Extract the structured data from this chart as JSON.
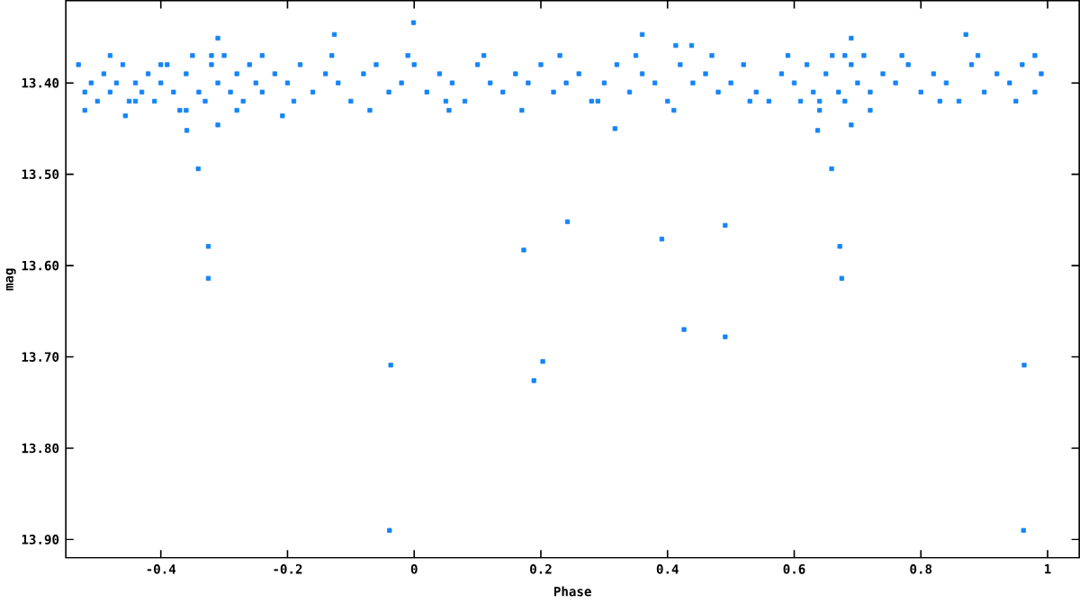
{
  "chart_data": {
    "type": "scatter",
    "xlabel": "Phase",
    "ylabel": "mag",
    "color": "#1484f8",
    "marker": "square",
    "grid": false,
    "xlim": [
      -0.55,
      1.05
    ],
    "xticks": [
      -0.4,
      -0.2,
      0,
      0.2,
      0.4,
      0.6,
      0.8,
      1
    ],
    "ylim": [
      13.92,
      13.31
    ],
    "yticks": [
      {
        "value": 13.4,
        "label": "13.40"
      },
      {
        "value": 13.5,
        "label": "13.50"
      },
      {
        "value": 13.6,
        "label": "13.60"
      },
      {
        "value": 13.7,
        "label": "13.70"
      },
      {
        "value": 13.8,
        "label": "13.80"
      },
      {
        "value": 13.9,
        "label": "13.90"
      }
    ],
    "x": [
      -0.53,
      -0.52,
      -0.51,
      -0.5,
      -0.49,
      -0.48,
      -0.47,
      -0.46,
      -0.45,
      -0.44,
      -0.43,
      -0.42,
      -0.41,
      -0.4,
      -0.39,
      -0.38,
      -0.37,
      -0.36,
      -0.35,
      -0.34,
      -0.33,
      -0.32,
      -0.31,
      -0.3,
      -0.29,
      -0.28,
      -0.27,
      -0.26,
      -0.25,
      -0.24,
      -0.22,
      -0.2,
      -0.18,
      -0.16,
      -0.14,
      -0.12,
      -0.1,
      -0.08,
      -0.06,
      -0.04,
      -0.02,
      0.0,
      0.02,
      0.04,
      0.06,
      0.08,
      0.1,
      0.12,
      0.14,
      0.16,
      0.18,
      0.2,
      0.22,
      0.24,
      0.26,
      0.28,
      0.3,
      0.32,
      0.34,
      0.36,
      0.38,
      0.4,
      0.42,
      0.44,
      0.46,
      0.48,
      0.5,
      0.52,
      0.54,
      0.56,
      0.58,
      0.6,
      0.61,
      0.62,
      0.63,
      0.64,
      0.65,
      0.66,
      0.67,
      0.68,
      0.69,
      0.7,
      0.71,
      0.72,
      0.74,
      0.76,
      0.78,
      0.8,
      0.82,
      0.84,
      0.86,
      0.88,
      0.9,
      0.92,
      0.94,
      0.96,
      0.98,
      0.99,
      -0.52,
      -0.48,
      -0.44,
      -0.4,
      -0.36,
      -0.32,
      -0.28,
      -0.24,
      -0.19,
      -0.13,
      -0.07,
      -0.01,
      0.05,
      0.11,
      0.17,
      0.23,
      0.29,
      0.35,
      0.41,
      0.47,
      0.53,
      0.59,
      0.64,
      0.68,
      0.72,
      0.77,
      0.83,
      0.89,
      0.95,
      0.98,
      -0.001,
      -0.126,
      -0.31,
      -0.359,
      -0.456,
      -0.208,
      0.055,
      -0.31,
      0.36,
      0.871,
      0.69,
      0.317,
      0.637,
      0.69,
      0.413,
      0.438,
      -0.341,
      -0.325,
      -0.325,
      -0.037,
      -0.039,
      0.173,
      0.189,
      0.203,
      0.242,
      0.391,
      0.426,
      0.491,
      0.491,
      0.659,
      0.672,
      0.675,
      0.963,
      0.962
    ],
    "values": [
      13.38,
      13.41,
      13.4,
      13.42,
      13.39,
      13.41,
      13.4,
      13.38,
      13.42,
      13.4,
      13.41,
      13.39,
      13.42,
      13.4,
      13.38,
      13.41,
      13.43,
      13.39,
      13.37,
      13.41,
      13.42,
      13.38,
      13.4,
      13.37,
      13.41,
      13.39,
      13.42,
      13.38,
      13.4,
      13.41,
      13.39,
      13.4,
      13.38,
      13.41,
      13.39,
      13.4,
      13.42,
      13.39,
      13.38,
      13.41,
      13.4,
      13.38,
      13.41,
      13.39,
      13.4,
      13.42,
      13.38,
      13.4,
      13.41,
      13.39,
      13.4,
      13.38,
      13.41,
      13.4,
      13.39,
      13.42,
      13.4,
      13.38,
      13.41,
      13.39,
      13.4,
      13.42,
      13.38,
      13.4,
      13.39,
      13.41,
      13.4,
      13.38,
      13.41,
      13.42,
      13.39,
      13.4,
      13.42,
      13.38,
      13.41,
      13.43,
      13.39,
      13.37,
      13.41,
      13.42,
      13.38,
      13.4,
      13.37,
      13.41,
      13.39,
      13.4,
      13.38,
      13.41,
      13.39,
      13.4,
      13.42,
      13.38,
      13.41,
      13.39,
      13.4,
      13.38,
      13.41,
      13.39,
      13.43,
      13.37,
      13.42,
      13.38,
      13.43,
      13.37,
      13.43,
      13.37,
      13.42,
      13.37,
      13.43,
      13.37,
      13.42,
      13.37,
      13.43,
      13.37,
      13.42,
      13.37,
      13.43,
      13.37,
      13.42,
      13.37,
      13.42,
      13.37,
      13.43,
      13.37,
      13.42,
      13.37,
      13.42,
      13.37,
      13.334,
      13.347,
      13.351,
      13.452,
      13.436,
      13.436,
      13.43,
      13.446,
      13.347,
      13.347,
      13.351,
      13.45,
      13.452,
      13.446,
      13.359,
      13.359,
      13.494,
      13.579,
      13.614,
      13.709,
      13.89,
      13.583,
      13.726,
      13.705,
      13.552,
      13.571,
      13.67,
      13.556,
      13.678,
      13.494,
      13.579,
      13.614,
      13.709,
      13.89
    ]
  }
}
